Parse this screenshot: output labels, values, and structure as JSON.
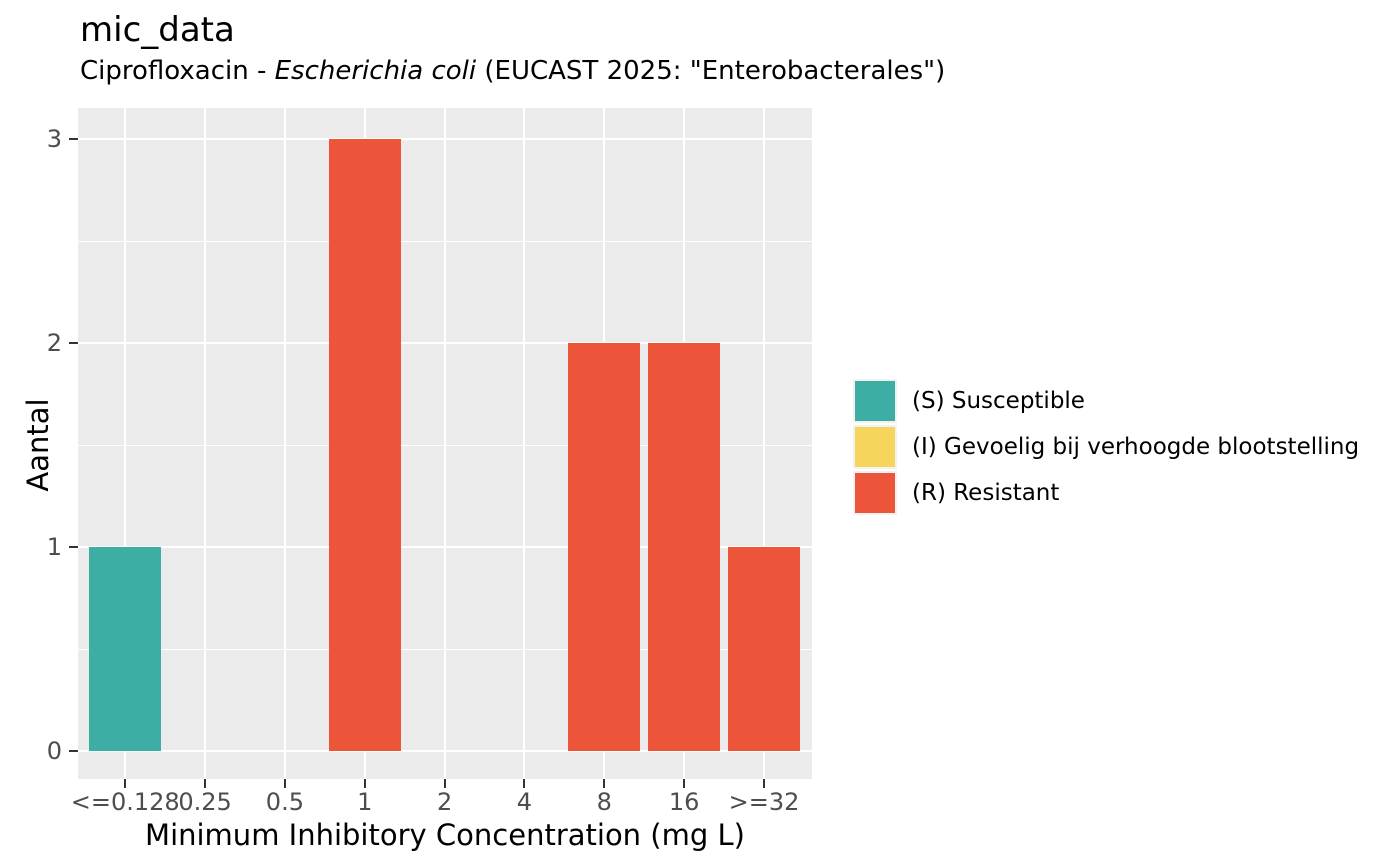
{
  "chart": {
    "title": "mic_data",
    "subtitle": {
      "prefix": "Ciprofloxacin - ",
      "italic": "Escherichia coli",
      "suffix": " (EUCAST 2025: \"Enterobacterales\")"
    },
    "xlabel": "Minimum Inhibitory Concentration (mg L)",
    "ylabel": "Aantal"
  },
  "chart_data": {
    "type": "bar",
    "title": "mic_data",
    "subtitle": "Ciprofloxacin - Escherichia coli (EUCAST 2025: \"Enterobacterales\")",
    "xlabel": "Minimum Inhibitory Concentration (mg L)",
    "ylabel": "Aantal",
    "categories": [
      "<=0.128",
      "0.25",
      "0.5",
      "1",
      "2",
      "4",
      "8",
      "16",
      ">=32"
    ],
    "values": [
      1,
      0,
      0,
      3,
      0,
      0,
      2,
      2,
      1
    ],
    "bar_classes": [
      "S",
      null,
      null,
      "R",
      null,
      null,
      "R",
      "R",
      "R"
    ],
    "yticks": [
      0,
      1,
      2,
      3
    ],
    "yminor": [
      0.5,
      1.5,
      2.5
    ],
    "ylim": [
      -0.15,
      3.15
    ],
    "grid": true,
    "legend_position": "right",
    "legend": [
      {
        "id": "S",
        "label": "(S) Susceptible",
        "color": "#3CAEA3"
      },
      {
        "id": "I",
        "label": "(I) Gevoelig bij verhoogde blootstelling",
        "color": "#F6D55C"
      },
      {
        "id": "R",
        "label": "(R) Resistant",
        "color": "#ED553B"
      }
    ],
    "colors": {
      "S": "#3CAEA3",
      "I": "#F6D55C",
      "R": "#ED553B",
      "panel_background": "#EBEBEB",
      "gridline": "#FFFFFF",
      "tick_mark": "#333333",
      "tick_text": "#4D4D4D",
      "legend_key_background": "#F2F2F2"
    }
  }
}
